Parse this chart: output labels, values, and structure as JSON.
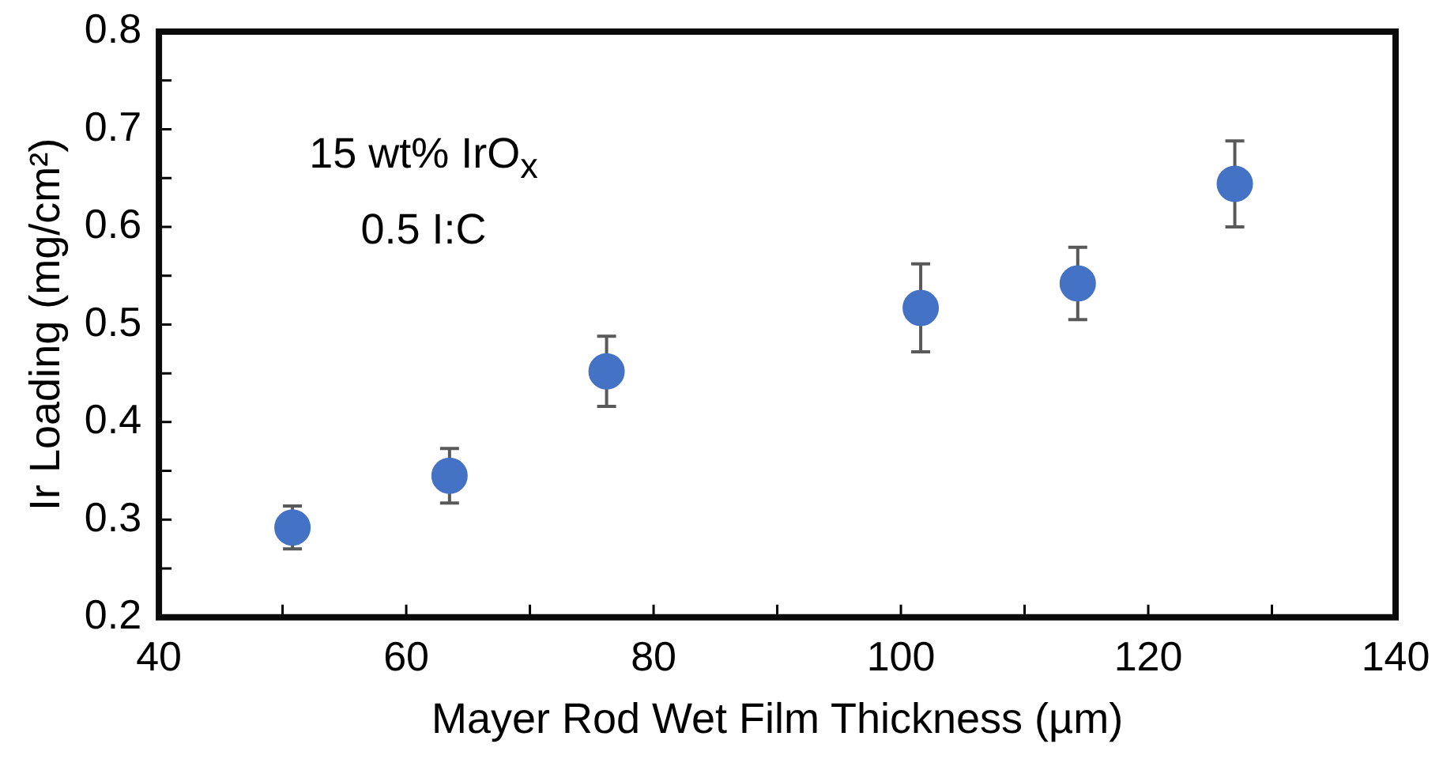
{
  "chart_data": {
    "type": "scatter",
    "xlabel": "Mayer Rod Wet Film Thickness (µm)",
    "ylabel": "Ir Loading (mg/cm²)",
    "annotations": [
      "15 wt% IrO$_{x}$",
      "0.5 I:C"
    ],
    "marker": "circle",
    "grid": false,
    "series": [
      {
        "color": "#4472c4",
        "x": [
          50.8,
          63.5,
          76.2,
          101.6,
          114.3,
          127.0
        ],
        "values": [
          0.292,
          0.345,
          0.452,
          0.517,
          0.542,
          0.644
        ],
        "errors": [
          0.022,
          0.028,
          0.036,
          0.045,
          0.037,
          0.044
        ]
      }
    ],
    "xlim": [
      40,
      140
    ],
    "xticks": [
      40,
      {
        "value": 50,
        "label": null
      },
      60,
      {
        "value": 70,
        "label": null
      },
      80,
      {
        "value": 90,
        "label": null
      },
      100,
      {
        "value": 110,
        "label": null
      },
      120,
      {
        "value": 130,
        "label": null
      },
      140
    ],
    "ylim": [
      0.2,
      0.8
    ],
    "yticks": [
      0.2,
      {
        "value": 0.25,
        "label": null
      },
      0.3,
      {
        "value": 0.35,
        "label": null
      },
      0.4,
      {
        "value": 0.45,
        "label": null
      },
      0.5,
      {
        "value": 0.55,
        "label": null
      },
      0.6,
      {
        "value": 0.65,
        "label": null
      },
      0.7,
      {
        "value": 0.75,
        "label": null
      },
      0.8
    ]
  }
}
